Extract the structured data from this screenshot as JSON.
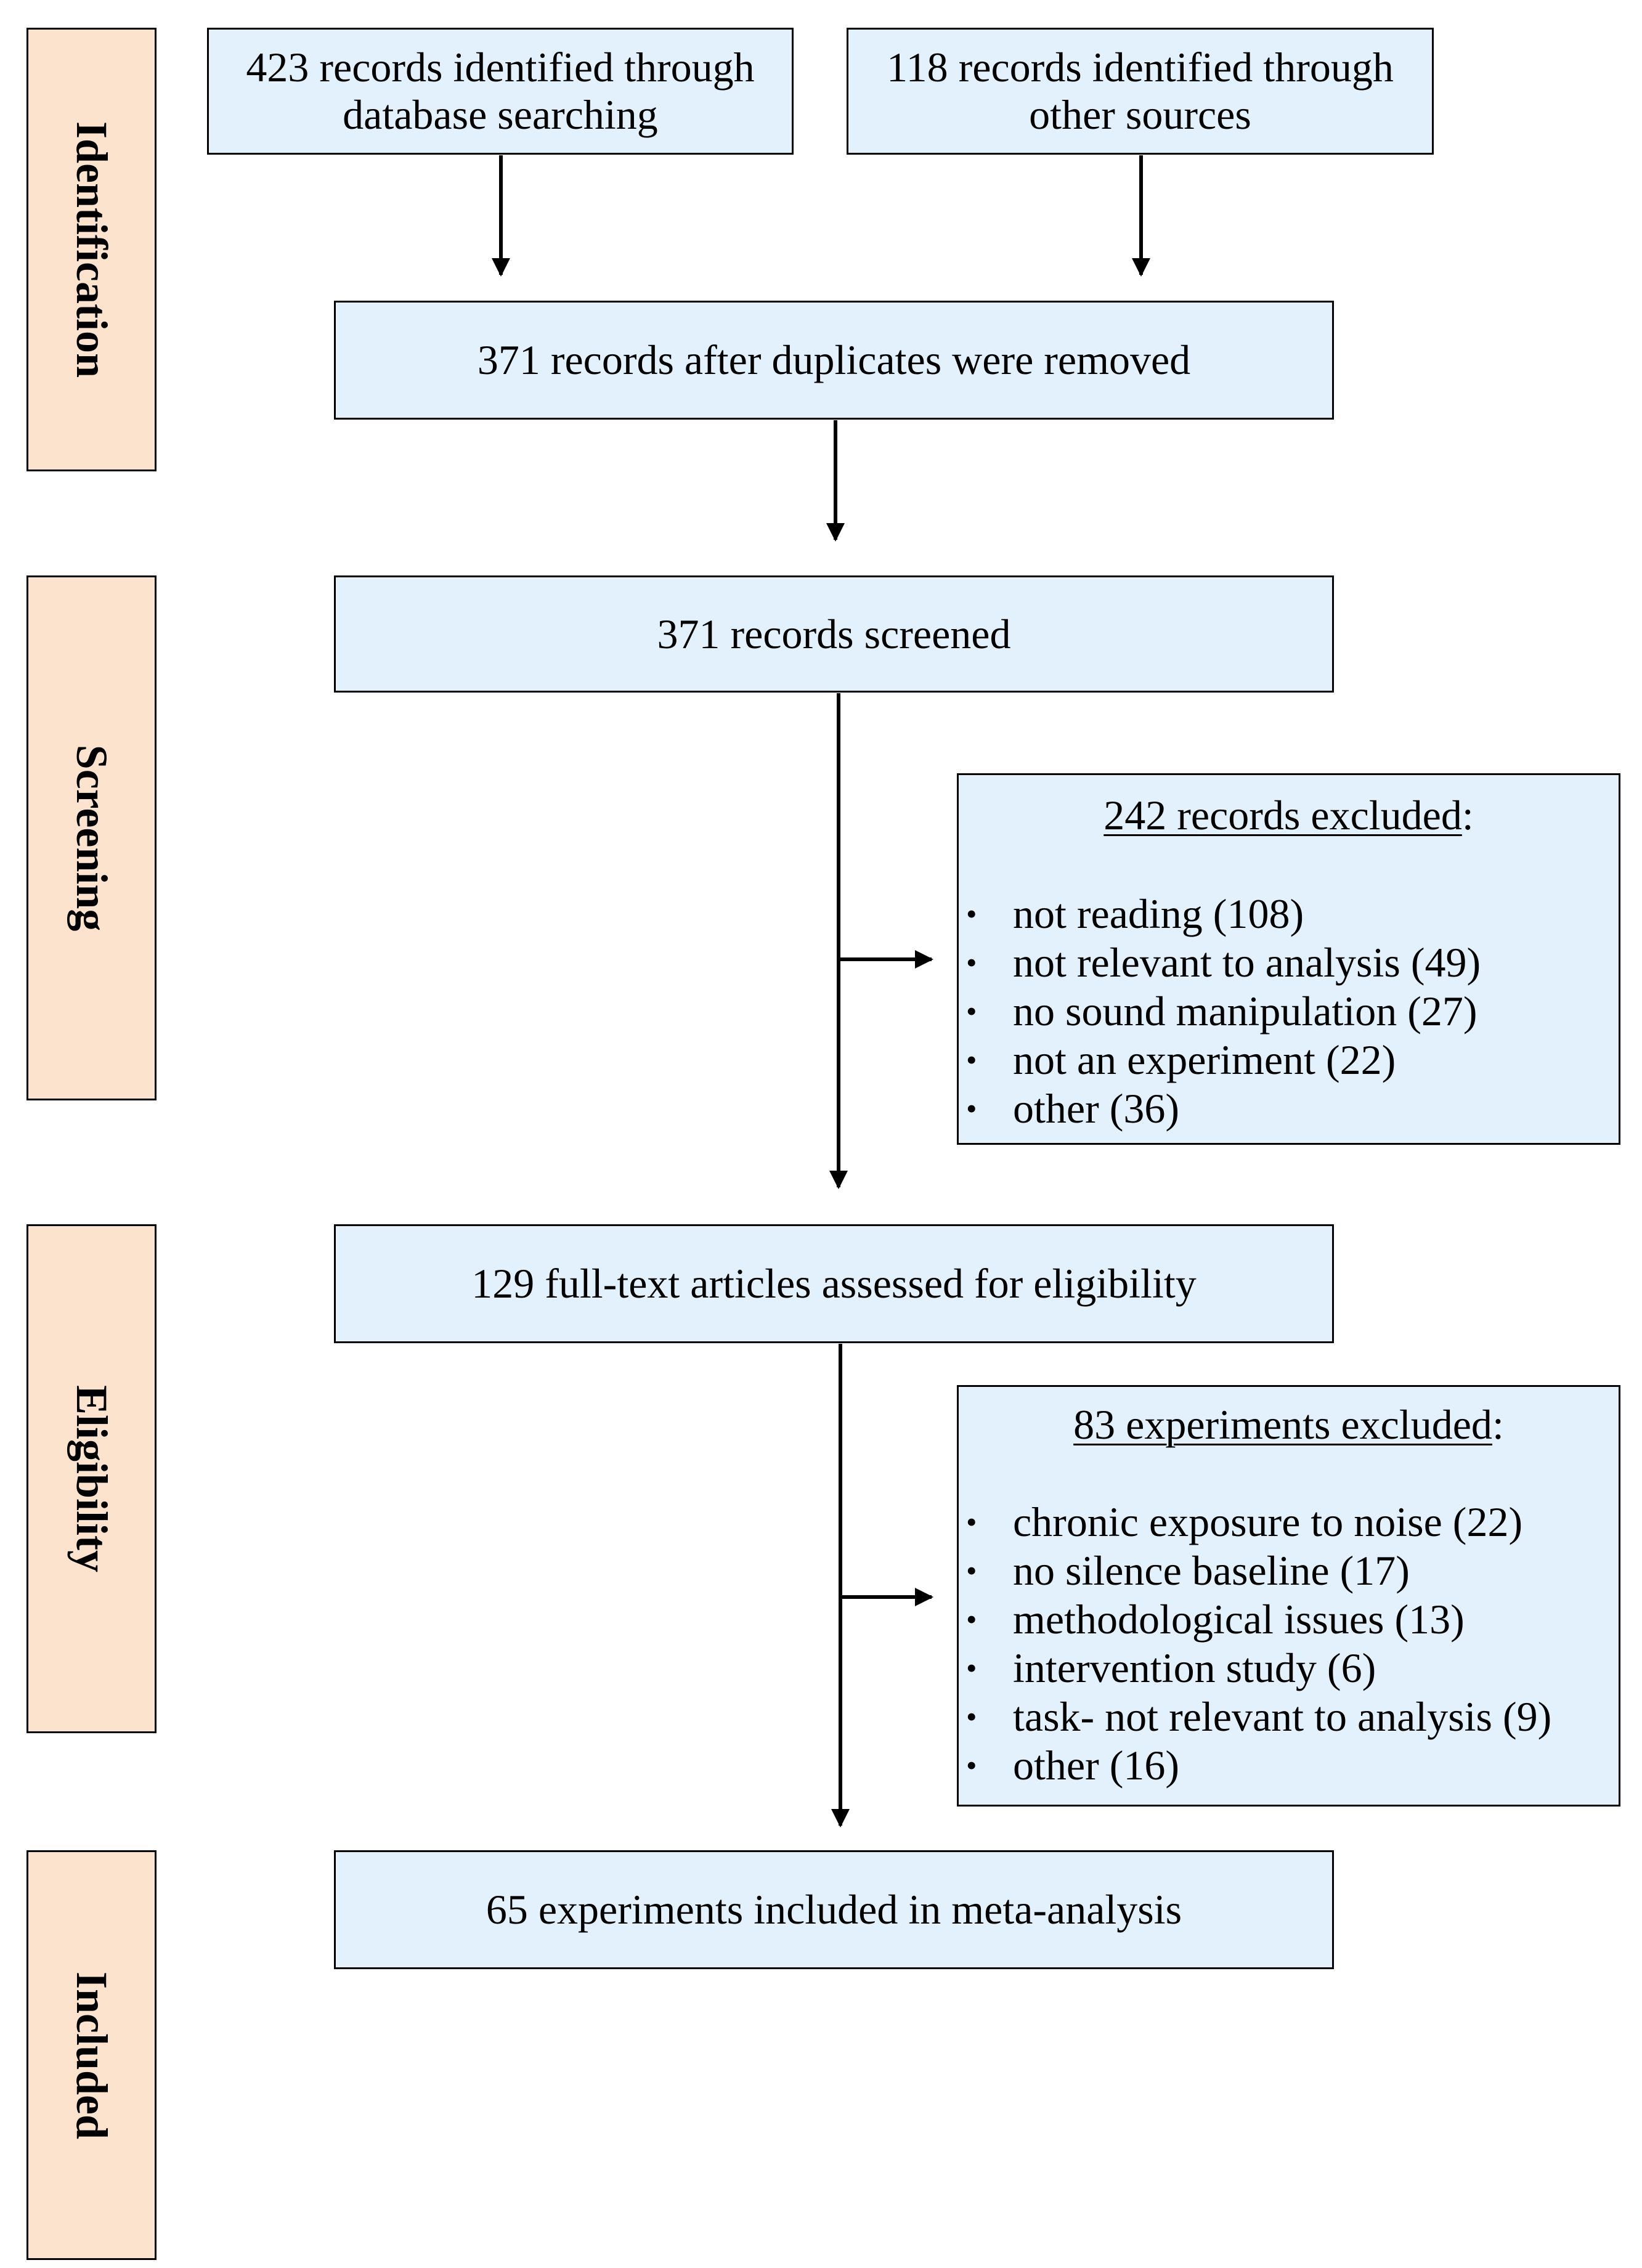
{
  "stages": {
    "identification": "Identification",
    "screening": "Screening",
    "eligibility": "Eligibility",
    "included": "Included"
  },
  "boxes": {
    "database_search": [
      "423 records identified through",
      "database searching"
    ],
    "other_sources": [
      "118 records identified through",
      "other sources"
    ],
    "after_duplicates": "371 records after duplicates were removed",
    "screened": "371 records screened",
    "full_text": "129 full-text articles assessed for eligibility",
    "included": "65 experiments included in meta-analysis"
  },
  "screening_exclusions": {
    "title": "242 records excluded",
    "title_suffix": ":",
    "items": [
      "not reading (108)",
      "not relevant to analysis (49)",
      "no sound manipulation (27)",
      "not an experiment (22)",
      "other (36)"
    ]
  },
  "eligibility_exclusions": {
    "title": "83 experiments excluded",
    "title_suffix": ":",
    "items": [
      "chronic exposure to noise (22)",
      "no silence baseline (17)",
      "methodological issues (13)",
      "intervention study (6)",
      "task- not relevant to analysis (9)",
      "other (16)"
    ]
  }
}
